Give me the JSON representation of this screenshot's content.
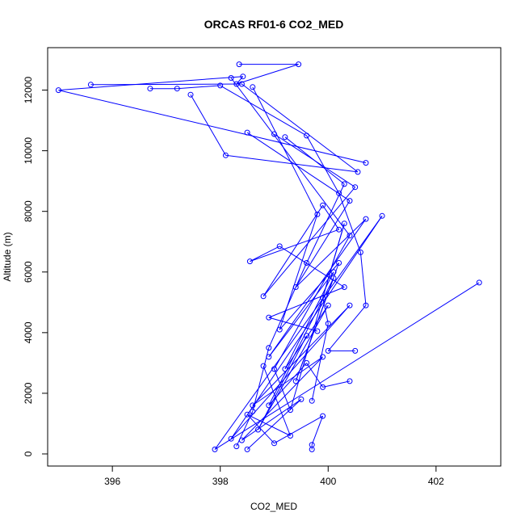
{
  "chart_data": {
    "type": "scatter",
    "title": "ORCAS RF01-6 CO2_MED",
    "xlabel": "CO2_MED",
    "ylabel": "Altitude (m)",
    "xlim": [
      394.8,
      403.2
    ],
    "ylim": [
      -400,
      13400
    ],
    "xticks": [
      396,
      398,
      400,
      402
    ],
    "yticks": [
      0,
      2000,
      4000,
      6000,
      8000,
      10000,
      12000
    ],
    "grid": false,
    "legend": "none",
    "series_color": "#0000ff",
    "series": [
      {
        "x": [
          398.35,
          399.45,
          398.3,
          398.42,
          395.0,
          400.7
        ],
        "y": [
          12850,
          12850,
          12200,
          12450,
          12000,
          9600
        ]
      },
      {
        "x": [
          395.6,
          398.4,
          400.55,
          398.1,
          397.45
        ],
        "y": [
          12180,
          12200,
          9300,
          9850,
          11850
        ]
      },
      {
        "x": [
          399.2,
          400.3,
          399.6,
          398.9,
          398.6,
          398.3
        ],
        "y": [
          10450,
          8900,
          6300,
          3500,
          1400,
          250
        ]
      },
      {
        "x": [
          399.0,
          400.5,
          398.8,
          399.9,
          400.2,
          398.55,
          399.1,
          400.3,
          398.9,
          399.8
        ],
        "y": [
          10550,
          8800,
          5200,
          8200,
          7400,
          6350,
          6850,
          5500,
          4500,
          4050
        ]
      },
      {
        "x": [
          398.5,
          400.4,
          399.4,
          400.7,
          398.9,
          400.1,
          399.2,
          400.0,
          398.7,
          399.6
        ],
        "y": [
          10600,
          8350,
          5500,
          7750,
          3200,
          6000,
          2800,
          4900,
          800,
          3900
        ]
      },
      {
        "x": [
          402.8,
          397.9,
          401.0,
          398.2,
          400.4,
          398.6,
          399.9,
          398.4,
          399.5,
          398.5
        ],
        "y": [
          5650,
          150,
          7850,
          500,
          4900,
          1600,
          3200,
          450,
          1800,
          150
        ]
      },
      {
        "x": [
          399.7,
          399.7,
          399.9,
          399.0,
          398.5,
          399.3,
          398.8
        ],
        "y": [
          150,
          300,
          1250,
          350,
          1300,
          600,
          2900
        ]
      },
      {
        "x": [
          396.7,
          397.2,
          398.0,
          399.6,
          400.2,
          400.6,
          400.7,
          400.0,
          400.5
        ],
        "y": [
          12050,
          12050,
          12150,
          10500,
          8600,
          6650,
          4900,
          3400,
          3400
        ]
      },
      {
        "x": [
          398.6,
          399.8,
          399.1,
          400.2,
          399.4,
          400.1,
          398.9,
          399.6,
          399.9,
          400.4
        ],
        "y": [
          12100,
          7900,
          4100,
          6300,
          2400,
          5800,
          1600,
          3000,
          2200,
          2400
        ]
      },
      {
        "x": [
          398.2,
          400.4,
          399.0,
          399.3,
          400.3,
          399.9,
          400.0,
          399.7
        ],
        "y": [
          12400,
          7200,
          2800,
          1450,
          7600,
          5150,
          4300,
          1750
        ]
      }
    ]
  }
}
